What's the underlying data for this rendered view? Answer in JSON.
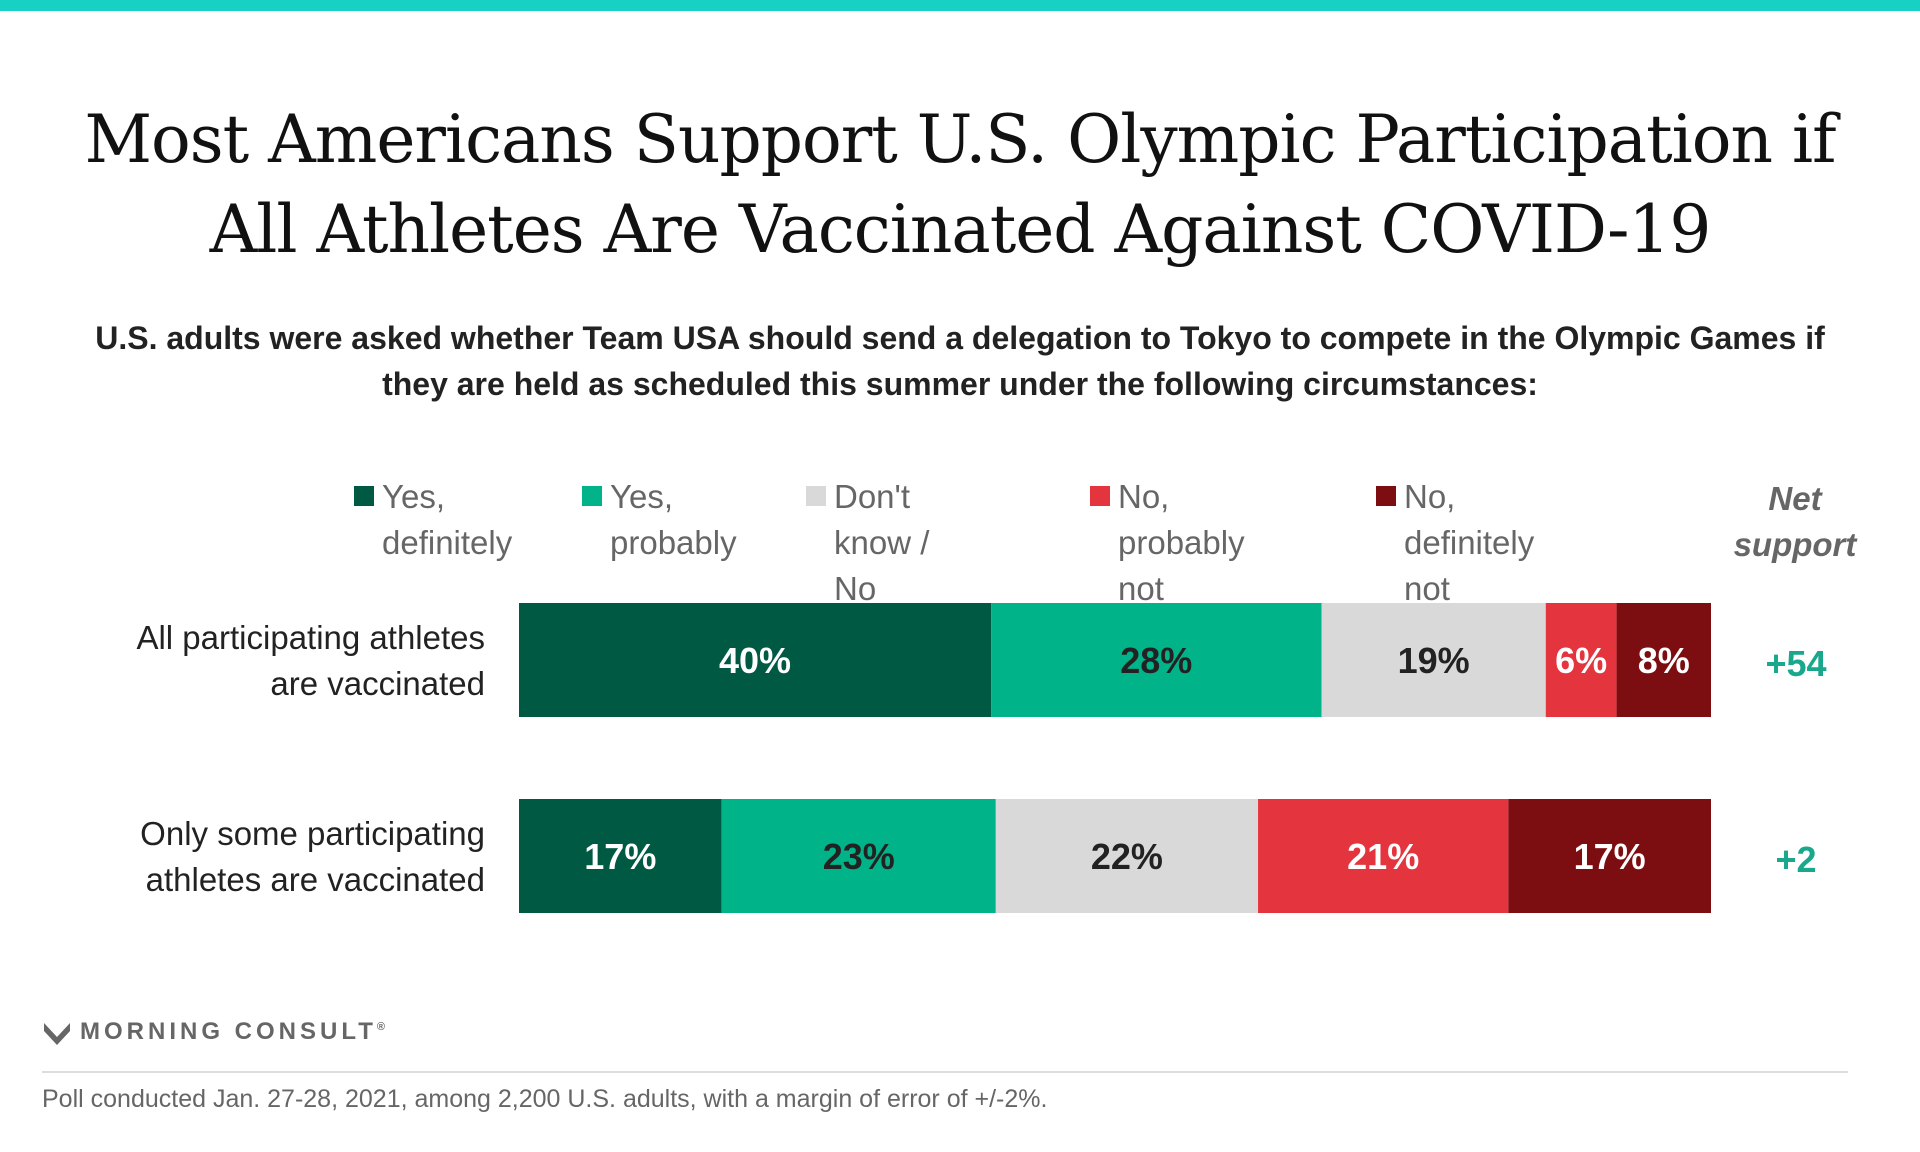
{
  "colors": {
    "accent": "#17d1c4",
    "yes_definitely": "#005a43",
    "yes_probably": "#00b389",
    "dont_know": "#d9d9d9",
    "no_probably_not": "#e4343e",
    "no_definitely_not": "#7c0e12",
    "net_support": "#1aa88c"
  },
  "title": "Most Americans Support U.S. Olympic Participation if All Athletes Are Vaccinated Against COVID-19",
  "subtitle": "U.S. adults were asked whether Team USA should send a delegation to Tokyo to compete in the Olympic Games if they are held as scheduled this summer under the following circumstances:",
  "legend": [
    {
      "label": "Yes,\ndefinitely"
    },
    {
      "label": "Yes,\nprobably"
    },
    {
      "label": "Don't know /\nNo opinion"
    },
    {
      "label": "No,\nprobably not"
    },
    {
      "label": "No,\ndefinitely not"
    }
  ],
  "net_support_header": "Net\nsupport",
  "chart_data": {
    "type": "bar",
    "orientation": "horizontal",
    "stacked": true,
    "categories": [
      "All participating athletes are vaccinated",
      "Only some participating athletes are vaccinated"
    ],
    "series": [
      {
        "name": "Yes, definitely",
        "values": [
          40,
          17
        ],
        "labels": [
          "40%",
          "17%"
        ]
      },
      {
        "name": "Yes, probably",
        "values": [
          28,
          23
        ],
        "labels": [
          "28%",
          "23%"
        ]
      },
      {
        "name": "Don't know / No opinion",
        "values": [
          19,
          22
        ],
        "labels": [
          "19%",
          "22%"
        ]
      },
      {
        "name": "No, probably not",
        "values": [
          6,
          21
        ],
        "labels": [
          "6%",
          "21%"
        ]
      },
      {
        "name": "No, definitely not",
        "values": [
          8,
          17
        ],
        "labels": [
          "8%",
          "17%"
        ]
      }
    ],
    "net_support": [
      "+54",
      "+2"
    ],
    "legend_position": "top"
  },
  "rows": [
    {
      "label": "All participating athletes\nare vaccinated"
    },
    {
      "label": "Only some participating\nathletes are vaccinated"
    }
  ],
  "brand": {
    "name": "MORNING CONSULT",
    "mark": "®"
  },
  "footnote": "Poll conducted Jan. 27-28, 2021, among 2,200 U.S. adults, with a margin of error of +/-2%."
}
